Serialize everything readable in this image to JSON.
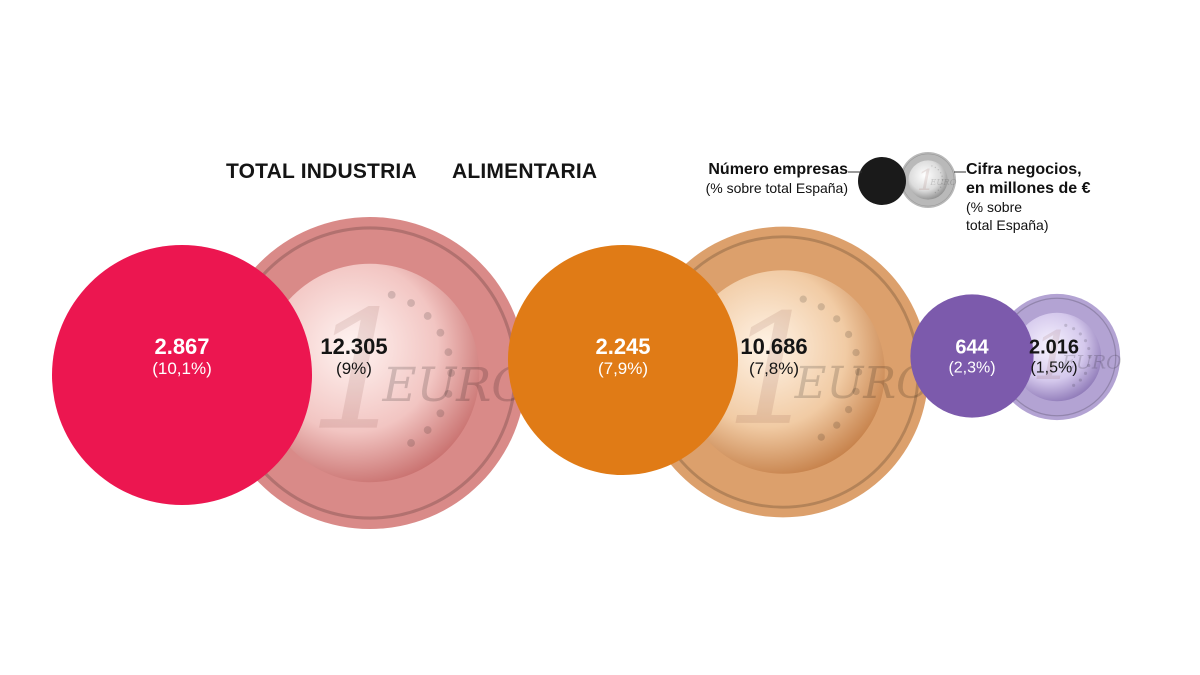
{
  "chart_data": {
    "type": "bubble-pair",
    "title": "",
    "groups": [
      {
        "name": "TOTAL INDUSTRIA",
        "empresas": 2867,
        "empresas_label": "2.867",
        "empresas_pct": "(10,1%)",
        "negocio": 12305,
        "negocio_label": "12.305",
        "negocio_pct": "(9%)",
        "circle_color": "#ec1650",
        "coin_tint": "#d98a88"
      },
      {
        "name": "ALIMENTARIA",
        "empresas": 2245,
        "empresas_label": "2.245",
        "empresas_pct": "(7,9%)",
        "negocio": 10686,
        "negocio_label": "10.686",
        "negocio_pct": "(7,8%)",
        "circle_color": "#e07b16",
        "coin_tint": "#dca06c"
      },
      {
        "name": "",
        "empresas": 644,
        "empresas_label": "644",
        "empresas_pct": "(2,3%)",
        "negocio": 2016,
        "negocio_label": "2.016",
        "negocio_pct": "(1,5%)",
        "circle_color": "#7c5aac",
        "coin_tint": "#b3a3d3"
      }
    ],
    "legend": {
      "circle_title": "Número empresas",
      "circle_subtitle": "(% sobre total España)",
      "coin_title_1": "Cifra negocios,",
      "coin_title_2": "en millones de €",
      "coin_subtitle_1": "(% sobre",
      "coin_subtitle_2": "total España)",
      "circle_color": "#1a1a1a",
      "coin_tint": "#b9b9b9"
    }
  },
  "coin_text": "EURO",
  "coin_digit": "1"
}
